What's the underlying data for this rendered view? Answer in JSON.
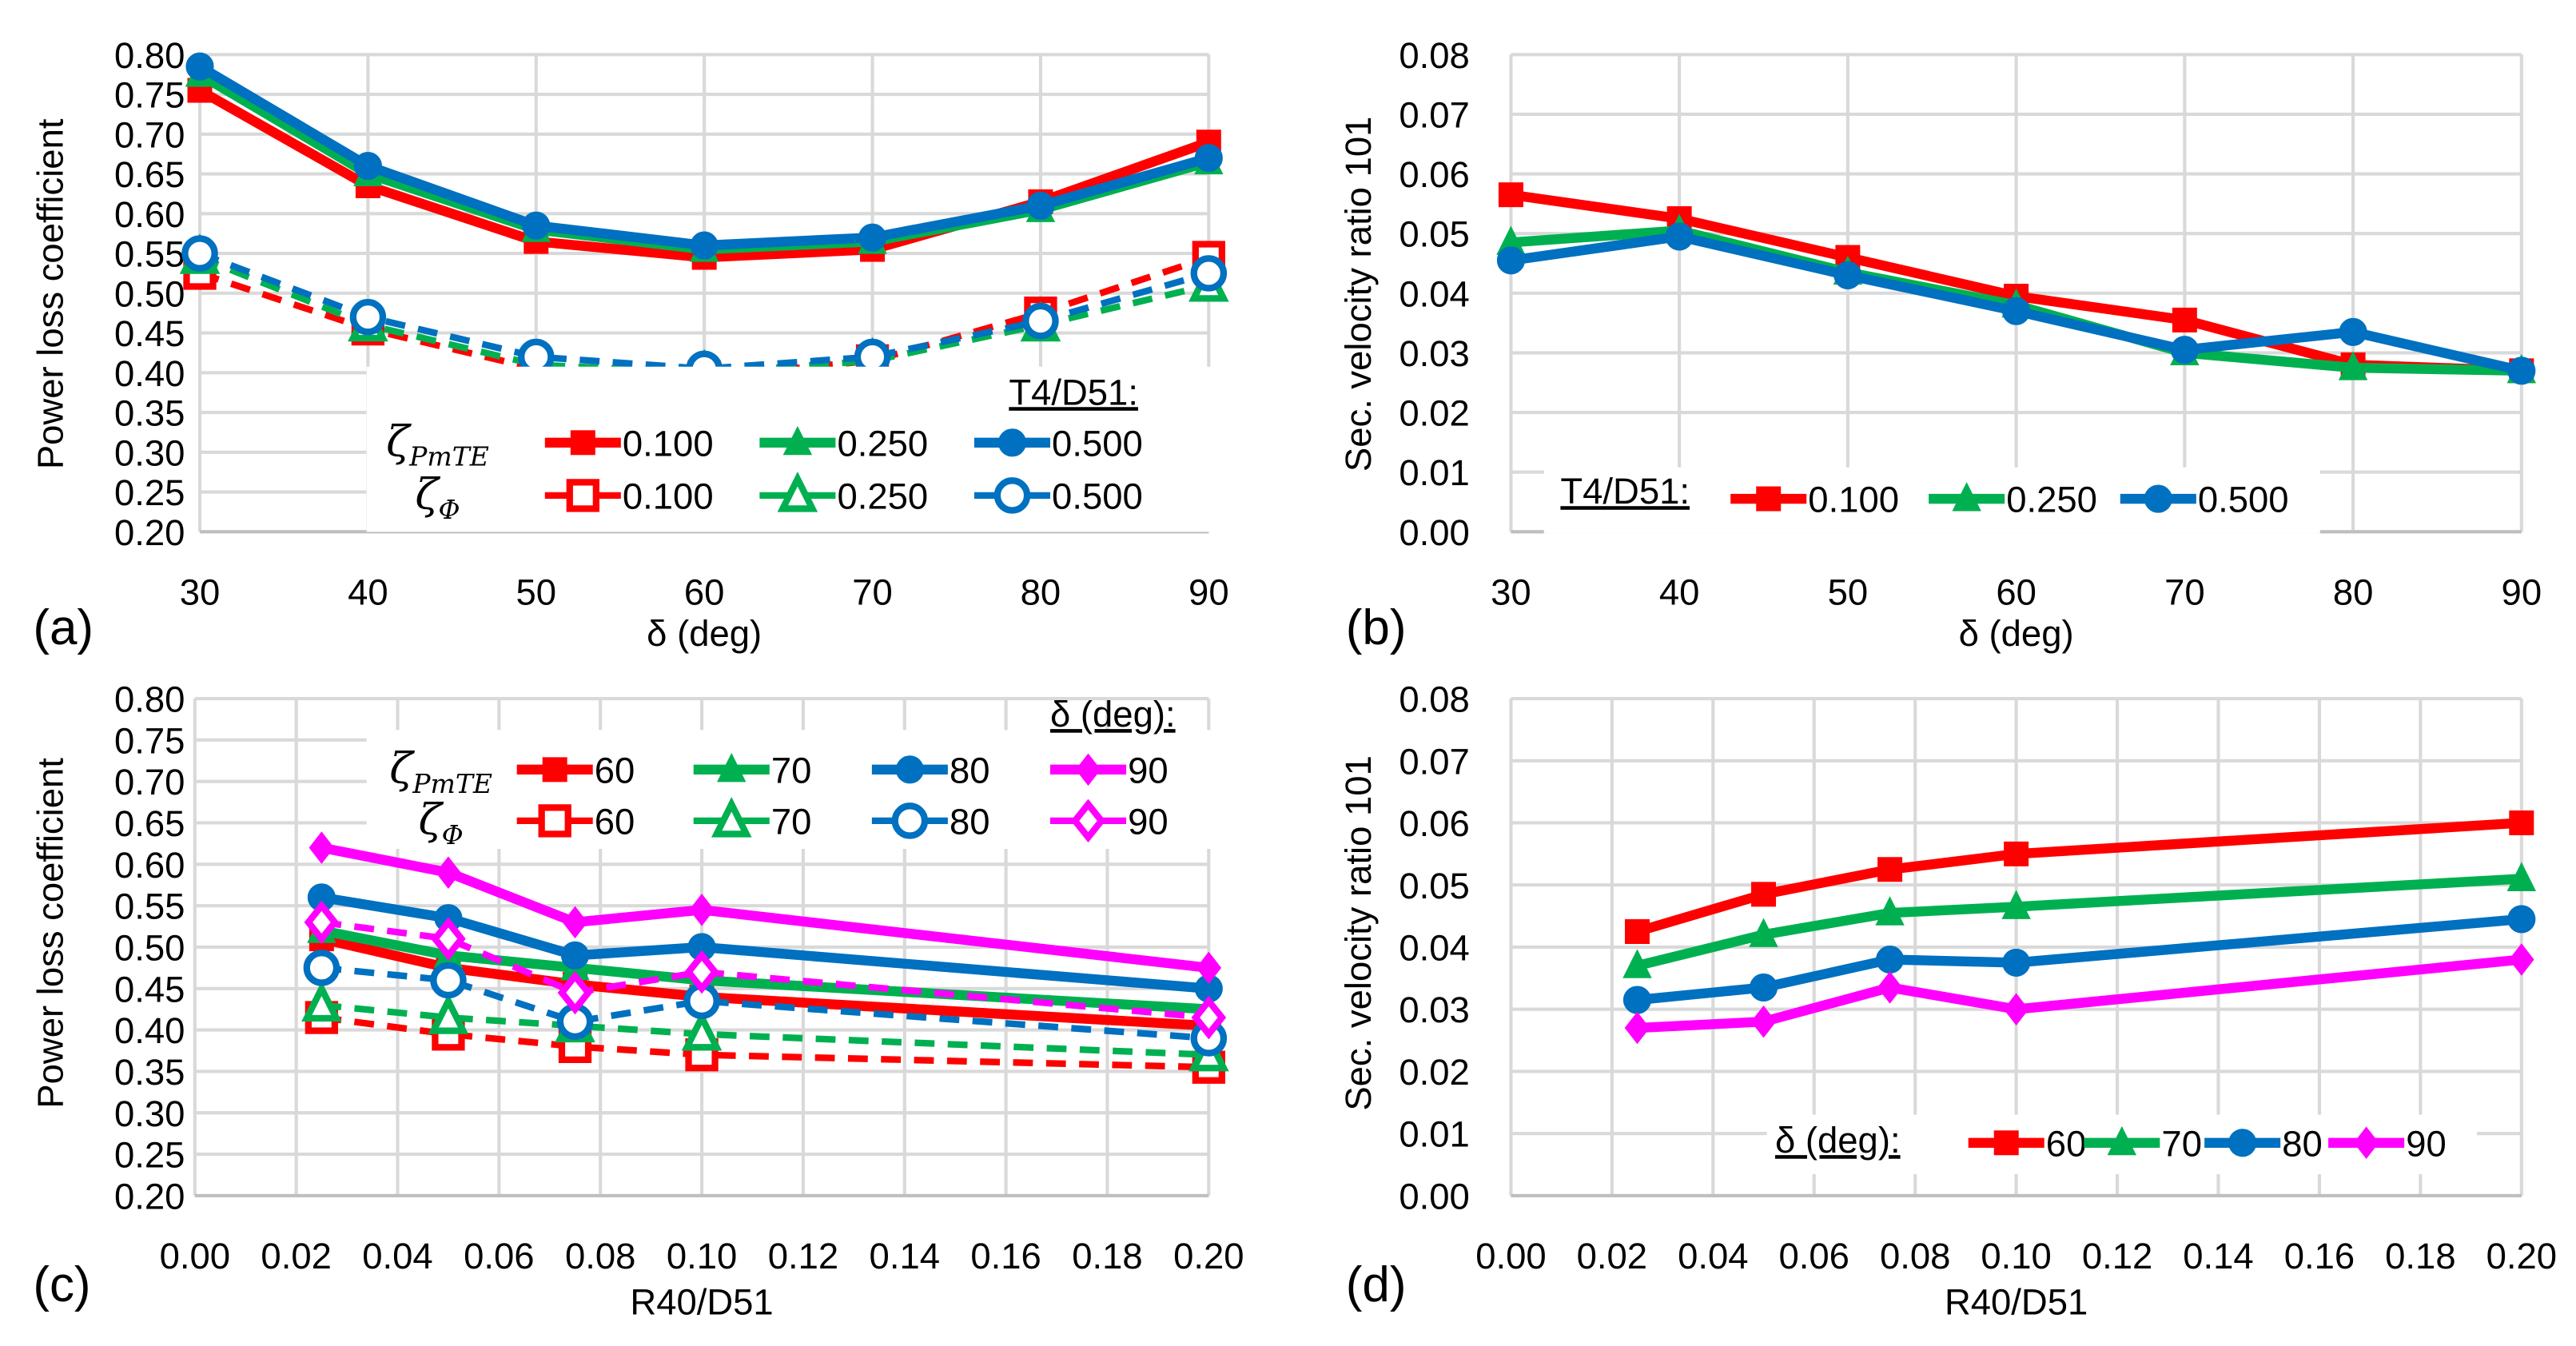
{
  "chart_data": [
    {
      "type": "line",
      "panel_label": "(a)",
      "xlabel": "δ (deg)",
      "ylabel": "Power loss coefficient",
      "xlim": [
        30,
        90
      ],
      "ylim": [
        0.2,
        0.8
      ],
      "xticks": [
        "30",
        "40",
        "50",
        "60",
        "70",
        "80",
        "90"
      ],
      "yticks": [
        "0.20",
        "0.25",
        "0.30",
        "0.35",
        "0.40",
        "0.45",
        "0.50",
        "0.55",
        "0.60",
        "0.65",
        "0.70",
        "0.75",
        "0.80"
      ],
      "grid": true,
      "legend_title": "T4/D51:",
      "legend_placement": "bottom-right",
      "legend_row_labels": [
        {
          "symbol": "ζ",
          "sub": "PmTE"
        },
        {
          "symbol": "ζ",
          "sub": "Φ"
        }
      ],
      "x": [
        30,
        40,
        50,
        60,
        70,
        80,
        90
      ],
      "series": [
        {
          "name": "0.100",
          "row": 0,
          "color": "#ff0000",
          "marker": "square",
          "hollow": false,
          "dashed": false,
          "values": [
            0.755,
            0.635,
            0.565,
            0.545,
            0.555,
            0.615,
            0.69
          ]
        },
        {
          "name": "0.250",
          "row": 0,
          "color": "#00b050",
          "marker": "triangle",
          "hollow": false,
          "dashed": false,
          "values": [
            0.775,
            0.65,
            0.58,
            0.555,
            0.565,
            0.605,
            0.665
          ]
        },
        {
          "name": "0.500",
          "row": 0,
          "color": "#0070c0",
          "marker": "circle",
          "hollow": false,
          "dashed": false,
          "values": [
            0.785,
            0.66,
            0.585,
            0.56,
            0.57,
            0.61,
            0.67
          ]
        },
        {
          "name": "0.100",
          "row": 1,
          "color": "#ff0000",
          "marker": "square",
          "hollow": true,
          "dashed": true,
          "values": [
            0.525,
            0.455,
            0.405,
            0.395,
            0.415,
            0.475,
            0.545
          ]
        },
        {
          "name": "0.250",
          "row": 1,
          "color": "#00b050",
          "marker": "triangle",
          "hollow": true,
          "dashed": true,
          "values": [
            0.545,
            0.46,
            0.41,
            0.4,
            0.415,
            0.46,
            0.51
          ]
        },
        {
          "name": "0.500",
          "row": 1,
          "color": "#0070c0",
          "marker": "circle",
          "hollow": true,
          "dashed": true,
          "values": [
            0.55,
            0.47,
            0.42,
            0.405,
            0.42,
            0.465,
            0.525
          ]
        }
      ]
    },
    {
      "type": "line",
      "panel_label": "(b)",
      "xlabel": "δ (deg)",
      "ylabel": "Sec. velocity ratio 101",
      "xlim": [
        30,
        90
      ],
      "ylim": [
        0,
        0.08
      ],
      "xticks": [
        "30",
        "40",
        "50",
        "60",
        "70",
        "80",
        "90"
      ],
      "yticks": [
        "0.00",
        "0.01",
        "0.02",
        "0.03",
        "0.04",
        "0.05",
        "0.06",
        "0.07",
        "0.08"
      ],
      "grid": true,
      "legend_title": "T4/D51:",
      "legend_placement": "bottom",
      "x": [
        30,
        40,
        50,
        60,
        70,
        80,
        90
      ],
      "series": [
        {
          "name": "0.100",
          "row": 0,
          "color": "#ff0000",
          "marker": "square",
          "hollow": false,
          "dashed": false,
          "values": [
            0.0565,
            0.0525,
            0.046,
            0.0395,
            0.0355,
            0.028,
            0.027
          ]
        },
        {
          "name": "0.250",
          "row": 0,
          "color": "#00b050",
          "marker": "triangle",
          "hollow": false,
          "dashed": false,
          "values": [
            0.0485,
            0.0505,
            0.0435,
            0.038,
            0.03,
            0.0275,
            0.027
          ]
        },
        {
          "name": "0.500",
          "row": 0,
          "color": "#0070c0",
          "marker": "circle",
          "hollow": false,
          "dashed": false,
          "values": [
            0.0455,
            0.0495,
            0.043,
            0.037,
            0.0305,
            0.0335,
            0.027
          ]
        }
      ]
    },
    {
      "type": "line",
      "panel_label": "(c)",
      "xlabel": "R40/D51",
      "ylabel": "Power loss coefficient",
      "xlim": [
        0,
        0.2
      ],
      "ylim": [
        0.2,
        0.8
      ],
      "xticks": [
        "0.00",
        "0.02",
        "0.04",
        "0.06",
        "0.08",
        "0.10",
        "0.12",
        "0.14",
        "0.16",
        "0.18",
        "0.20"
      ],
      "yticks": [
        "0.20",
        "0.25",
        "0.30",
        "0.35",
        "0.40",
        "0.45",
        "0.50",
        "0.55",
        "0.60",
        "0.65",
        "0.70",
        "0.75",
        "0.80"
      ],
      "grid": true,
      "legend_title": "δ (deg):",
      "legend_placement": "top",
      "legend_row_labels": [
        {
          "symbol": "ζ",
          "sub": "PmTE"
        },
        {
          "symbol": "ζ",
          "sub": "Φ"
        }
      ],
      "x": [
        0.025,
        0.05,
        0.075,
        0.1,
        0.2
      ],
      "series": [
        {
          "name": "60",
          "row": 0,
          "color": "#ff0000",
          "marker": "square",
          "hollow": false,
          "dashed": false,
          "values": [
            0.51,
            0.475,
            0.455,
            0.44,
            0.405
          ]
        },
        {
          "name": "70",
          "row": 0,
          "color": "#00b050",
          "marker": "triangle",
          "hollow": false,
          "dashed": false,
          "values": [
            0.52,
            0.49,
            0.475,
            0.46,
            0.425
          ]
        },
        {
          "name": "80",
          "row": 0,
          "color": "#0070c0",
          "marker": "circle",
          "hollow": false,
          "dashed": false,
          "values": [
            0.56,
            0.535,
            0.49,
            0.5,
            0.45
          ]
        },
        {
          "name": "90",
          "row": 0,
          "color": "#ff00ff",
          "marker": "diamond",
          "hollow": false,
          "dashed": false,
          "values": [
            0.62,
            0.59,
            0.53,
            0.545,
            0.475
          ]
        },
        {
          "name": "60",
          "row": 1,
          "color": "#ff0000",
          "marker": "square",
          "hollow": true,
          "dashed": true,
          "values": [
            0.415,
            0.395,
            0.38,
            0.37,
            0.355
          ]
        },
        {
          "name": "70",
          "row": 1,
          "color": "#00b050",
          "marker": "triangle",
          "hollow": true,
          "dashed": true,
          "values": [
            0.43,
            0.415,
            0.405,
            0.395,
            0.37
          ]
        },
        {
          "name": "80",
          "row": 1,
          "color": "#0070c0",
          "marker": "circle",
          "hollow": true,
          "dashed": true,
          "values": [
            0.475,
            0.46,
            0.41,
            0.435,
            0.39
          ]
        },
        {
          "name": "90",
          "row": 1,
          "color": "#ff00ff",
          "marker": "diamond",
          "hollow": true,
          "dashed": true,
          "values": [
            0.53,
            0.51,
            0.445,
            0.47,
            0.415
          ]
        }
      ]
    },
    {
      "type": "line",
      "panel_label": "(d)",
      "xlabel": "R40/D51",
      "ylabel": "Sec. velocity ratio 101",
      "xlim": [
        0,
        0.2
      ],
      "ylim": [
        0,
        0.08
      ],
      "xticks": [
        "0.00",
        "0.02",
        "0.04",
        "0.06",
        "0.08",
        "0.10",
        "0.12",
        "0.14",
        "0.16",
        "0.18",
        "0.20"
      ],
      "yticks": [
        "0.00",
        "0.01",
        "0.02",
        "0.03",
        "0.04",
        "0.05",
        "0.06",
        "0.07",
        "0.08"
      ],
      "grid": true,
      "legend_title": "δ (deg):",
      "legend_placement": "bottom-right",
      "x": [
        0.025,
        0.05,
        0.075,
        0.1,
        0.2
      ],
      "series": [
        {
          "name": "60",
          "row": 0,
          "color": "#ff0000",
          "marker": "square",
          "hollow": false,
          "dashed": false,
          "values": [
            0.0425,
            0.0485,
            0.0525,
            0.055,
            0.06
          ]
        },
        {
          "name": "70",
          "row": 0,
          "color": "#00b050",
          "marker": "triangle",
          "hollow": false,
          "dashed": false,
          "values": [
            0.037,
            0.042,
            0.0455,
            0.0465,
            0.051
          ]
        },
        {
          "name": "80",
          "row": 0,
          "color": "#0070c0",
          "marker": "circle",
          "hollow": false,
          "dashed": false,
          "values": [
            0.0315,
            0.0335,
            0.038,
            0.0375,
            0.0445
          ]
        },
        {
          "name": "90",
          "row": 0,
          "color": "#ff00ff",
          "marker": "diamond",
          "hollow": false,
          "dashed": false,
          "values": [
            0.027,
            0.028,
            0.0335,
            0.03,
            0.038
          ]
        }
      ]
    }
  ]
}
